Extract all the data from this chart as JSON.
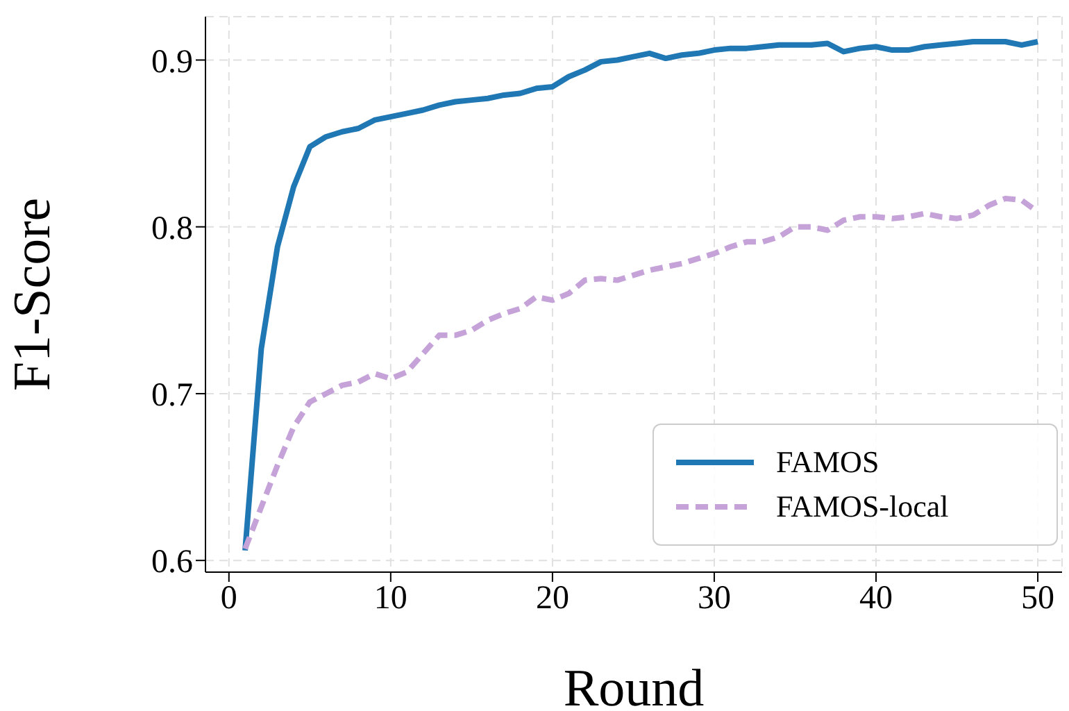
{
  "chart_data": {
    "type": "line",
    "xlabel": "Round",
    "ylabel": "F1-Score",
    "x": [
      1,
      2,
      3,
      4,
      5,
      6,
      7,
      8,
      9,
      10,
      11,
      12,
      13,
      14,
      15,
      16,
      17,
      18,
      19,
      20,
      21,
      22,
      23,
      24,
      25,
      26,
      27,
      28,
      29,
      30,
      31,
      32,
      33,
      34,
      35,
      36,
      37,
      38,
      39,
      40,
      41,
      42,
      43,
      44,
      45,
      46,
      47,
      48,
      49,
      50
    ],
    "series": [
      {
        "name": "FAMOS",
        "color": "#1f77b4",
        "line_style": "solid",
        "values": [
          0.606,
          0.727,
          0.788,
          0.824,
          0.848,
          0.854,
          0.857,
          0.859,
          0.864,
          0.866,
          0.868,
          0.87,
          0.873,
          0.875,
          0.876,
          0.877,
          0.879,
          0.88,
          0.883,
          0.884,
          0.89,
          0.894,
          0.899,
          0.9,
          0.902,
          0.904,
          0.901,
          0.903,
          0.904,
          0.906,
          0.907,
          0.907,
          0.908,
          0.909,
          0.909,
          0.909,
          0.91,
          0.905,
          0.907,
          0.908,
          0.906,
          0.906,
          0.908,
          0.909,
          0.91,
          0.911,
          0.911,
          0.911,
          0.909,
          0.911
        ]
      },
      {
        "name": "FAMOS-local",
        "color": "#c5a3d9",
        "line_style": "dashed",
        "values": [
          0.607,
          0.632,
          0.657,
          0.68,
          0.695,
          0.7,
          0.705,
          0.707,
          0.712,
          0.709,
          0.713,
          0.724,
          0.735,
          0.735,
          0.738,
          0.744,
          0.748,
          0.751,
          0.758,
          0.756,
          0.76,
          0.768,
          0.769,
          0.768,
          0.771,
          0.774,
          0.776,
          0.778,
          0.781,
          0.784,
          0.788,
          0.791,
          0.791,
          0.794,
          0.8,
          0.8,
          0.798,
          0.804,
          0.806,
          0.806,
          0.805,
          0.806,
          0.808,
          0.806,
          0.805,
          0.807,
          0.813,
          0.817,
          0.816,
          0.809
        ]
      }
    ],
    "xlim": [
      -1.45,
      51.5
    ],
    "xticks": [
      0,
      10,
      20,
      30,
      40,
      50
    ],
    "ylim": [
      0.593,
      0.926
    ],
    "yticks": [
      0.6,
      0.7,
      0.8,
      0.9
    ],
    "grid": true,
    "legend": "bottom right",
    "marker": "none"
  }
}
